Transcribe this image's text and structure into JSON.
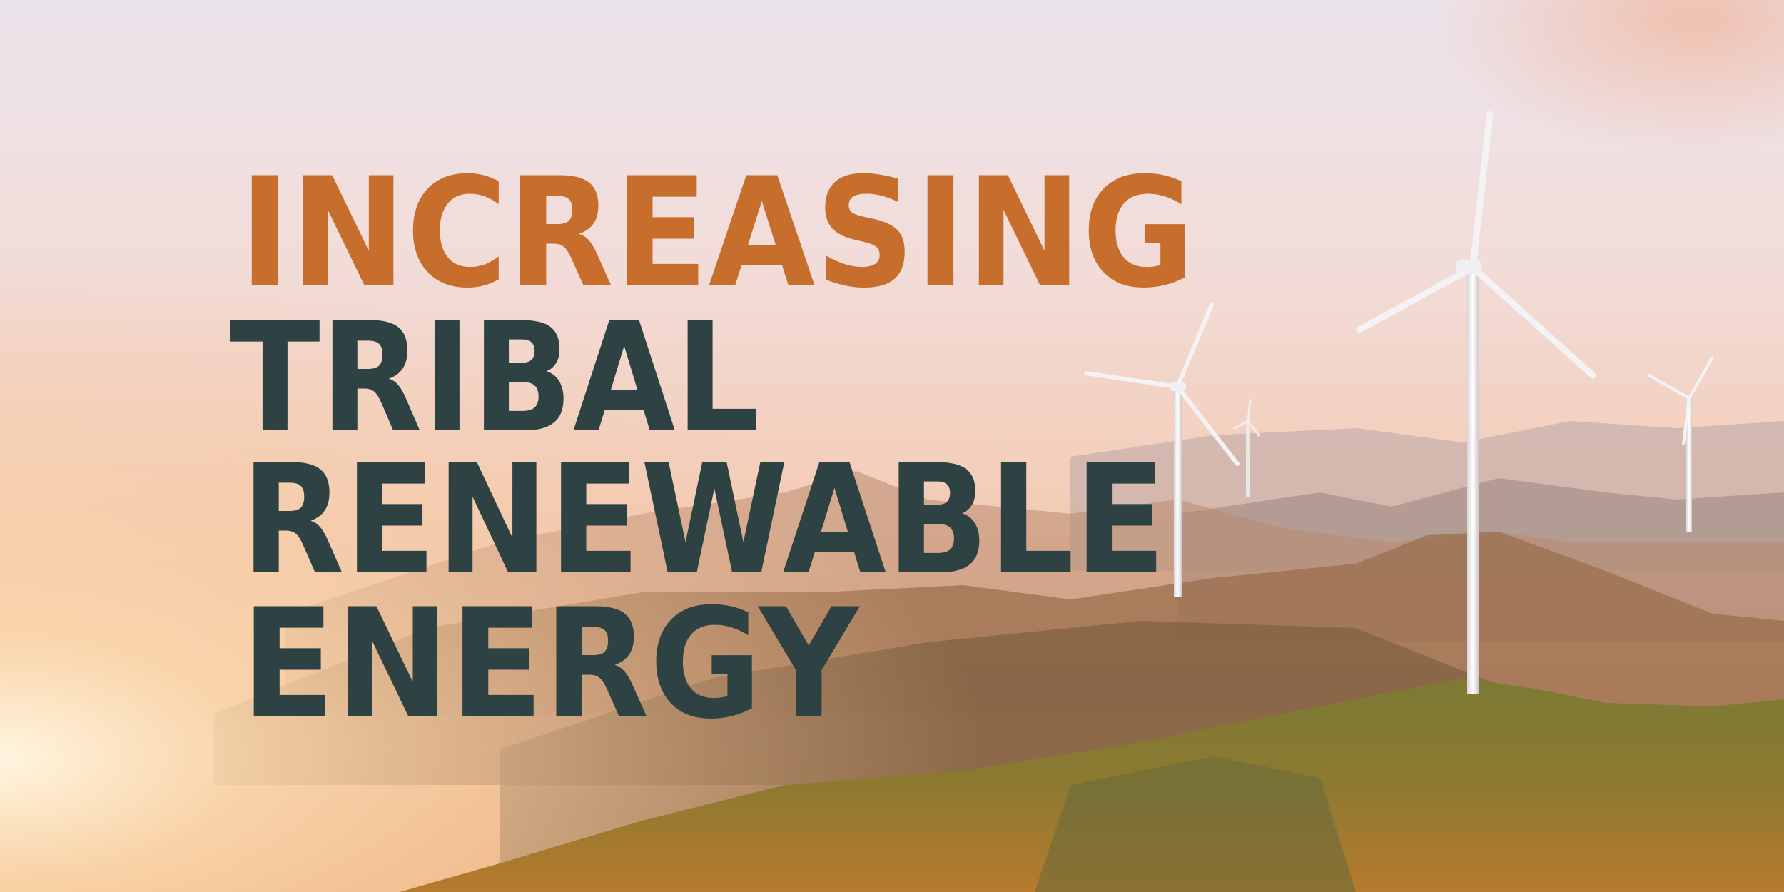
{
  "headline": {
    "line1": "INCREASING",
    "line2": "TRIBAL",
    "line3": "RENEWABLE",
    "line4": "ENERGY"
  },
  "colors": {
    "accent_orange": "#C76E2D",
    "dark_teal": "#2F4243",
    "sky_top": "#E9E3EA",
    "sky_warm": "#F6D2BE",
    "hill_green": "#6E7A2E"
  },
  "scene": {
    "icons": [
      "wind-turbine-icon",
      "mountain-range",
      "sun-glow"
    ]
  }
}
